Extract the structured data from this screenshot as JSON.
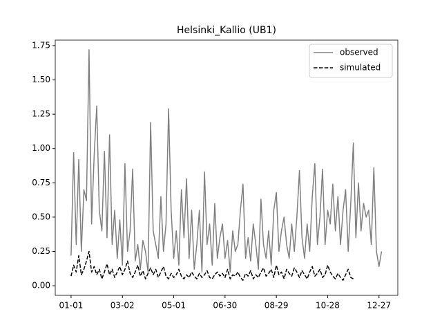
{
  "chart_data": {
    "type": "line",
    "title": "Helsinki_Kallio (UB1)",
    "x": [
      0,
      3,
      6,
      9,
      12,
      15,
      18,
      21,
      24,
      27,
      30,
      33,
      36,
      39,
      42,
      45,
      48,
      51,
      54,
      57,
      60,
      63,
      66,
      69,
      72,
      75,
      78,
      81,
      84,
      87,
      90,
      93,
      96,
      99,
      102,
      105,
      108,
      111,
      114,
      117,
      120,
      123,
      126,
      129,
      132,
      135,
      138,
      141,
      144,
      147,
      150,
      153,
      156,
      159,
      162,
      165,
      168,
      171,
      174,
      177,
      180,
      183,
      186,
      189,
      192,
      195,
      198,
      201,
      204,
      207,
      210,
      213,
      216,
      219,
      222,
      225,
      228,
      231,
      234,
      237,
      240,
      243,
      246,
      249,
      252,
      255,
      258,
      261,
      264,
      267,
      270,
      273,
      276,
      279,
      282,
      285,
      288,
      291,
      294,
      297,
      300,
      303,
      306,
      309,
      312,
      315,
      318,
      321,
      324,
      327,
      330,
      333,
      336,
      339,
      342,
      345,
      348,
      351,
      354,
      357,
      360,
      363
    ],
    "series": [
      {
        "name": "observed",
        "color": "#808080",
        "dash": "solid",
        "values": [
          0.22,
          0.97,
          0.3,
          0.92,
          0.25,
          0.7,
          0.62,
          1.72,
          0.45,
          0.95,
          1.31,
          0.55,
          0.4,
          0.98,
          0.35,
          1.1,
          0.3,
          0.55,
          0.2,
          0.48,
          0.15,
          0.89,
          0.25,
          0.4,
          0.85,
          0.18,
          0.3,
          0.12,
          0.33,
          0.25,
          0.1,
          1.19,
          0.4,
          0.3,
          0.2,
          0.65,
          0.25,
          0.45,
          1.29,
          0.55,
          0.2,
          0.4,
          0.15,
          0.7,
          0.35,
          0.78,
          0.2,
          0.55,
          0.12,
          0.3,
          0.55,
          0.1,
          0.83,
          0.3,
          0.45,
          0.15,
          0.6,
          0.2,
          0.35,
          0.45,
          0.2,
          0.33,
          0.1,
          0.4,
          0.25,
          0.3,
          0.55,
          0.74,
          0.2,
          0.35,
          0.18,
          0.45,
          0.3,
          0.12,
          0.63,
          0.3,
          0.2,
          0.4,
          0.15,
          0.55,
          0.68,
          0.25,
          0.4,
          0.5,
          0.3,
          0.2,
          0.45,
          0.25,
          0.5,
          0.84,
          0.35,
          0.2,
          0.45,
          0.25,
          0.65,
          0.89,
          0.3,
          0.5,
          0.85,
          0.3,
          0.55,
          0.45,
          0.74,
          0.4,
          0.65,
          0.3,
          0.55,
          0.7,
          0.25,
          0.6,
          1.04,
          0.35,
          0.75,
          0.4,
          0.6,
          0.5,
          0.55,
          0.3,
          0.86,
          0.25,
          0.14,
          0.25
        ]
      },
      {
        "name": "simulated",
        "color": "#000000",
        "dash": "dashed",
        "values": [
          0.07,
          0.15,
          0.1,
          0.22,
          0.08,
          0.12,
          0.18,
          0.25,
          0.1,
          0.14,
          0.08,
          0.12,
          0.05,
          0.1,
          0.16,
          0.08,
          0.12,
          0.06,
          0.1,
          0.14,
          0.08,
          0.12,
          0.18,
          0.09,
          0.06,
          0.1,
          0.15,
          0.07,
          0.11,
          0.05,
          0.09,
          0.13,
          0.08,
          0.12,
          0.06,
          0.1,
          0.14,
          0.07,
          0.05,
          0.09,
          0.06,
          0.08,
          0.12,
          0.07,
          0.05,
          0.08,
          0.06,
          0.1,
          0.07,
          0.05,
          0.09,
          0.06,
          0.08,
          0.11,
          0.06,
          0.05,
          0.08,
          0.1,
          0.07,
          0.09,
          0.06,
          0.12,
          0.05,
          0.08,
          0.07,
          0.1,
          0.06,
          0.04,
          0.09,
          0.07,
          0.11,
          0.05,
          0.08,
          0.06,
          0.1,
          0.13,
          0.07,
          0.09,
          0.12,
          0.06,
          0.15,
          0.08,
          0.1,
          0.05,
          0.12,
          0.09,
          0.07,
          0.13,
          0.1,
          0.06,
          0.11,
          0.08,
          0.05,
          0.1,
          0.14,
          0.07,
          0.09,
          0.12,
          0.06,
          0.08,
          0.15,
          0.1,
          0.07,
          0.05,
          0.09,
          0.06,
          0.04,
          0.08,
          0.12,
          0.06,
          0.05,
          null,
          null,
          null,
          null,
          null,
          null,
          null,
          null,
          null,
          null,
          null
        ]
      }
    ],
    "xlim": [
      -18.5,
      382
    ],
    "xticks": [
      {
        "value": 0,
        "label": "01-01"
      },
      {
        "value": 60,
        "label": "03-02"
      },
      {
        "value": 120,
        "label": "05-01"
      },
      {
        "value": 180,
        "label": "06-30"
      },
      {
        "value": 240,
        "label": "08-29"
      },
      {
        "value": 300,
        "label": "10-28"
      },
      {
        "value": 360,
        "label": "12-27"
      }
    ],
    "ylim": [
      -0.07,
      1.79
    ],
    "yticks": [
      {
        "value": 0,
        "label": "0.00"
      },
      {
        "value": 0.25,
        "label": "0.25"
      },
      {
        "value": 0.5,
        "label": "0.50"
      },
      {
        "value": 0.75,
        "label": "0.75"
      },
      {
        "value": 1,
        "label": "1.00"
      },
      {
        "value": 1.25,
        "label": "1.25"
      },
      {
        "value": 1.5,
        "label": "1.50"
      },
      {
        "value": 1.75,
        "label": "1.75"
      }
    ],
    "grid": false,
    "legend": "upper right"
  }
}
